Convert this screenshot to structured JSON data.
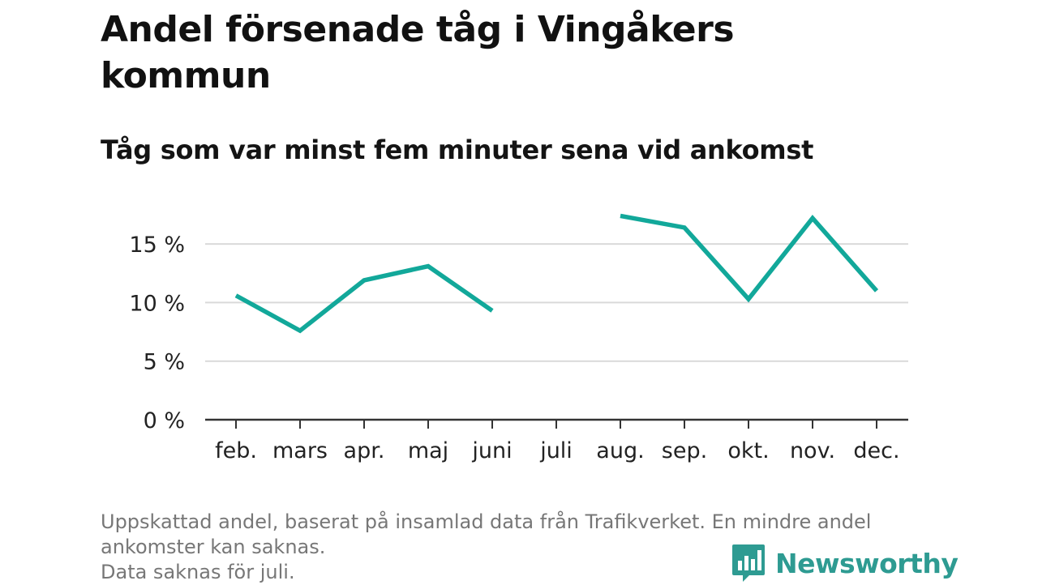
{
  "title": "Andel försenade tåg i Vingåkers kommun",
  "subtitle": "Tåg som var minst fem minuter sena vid ankomst",
  "footnote": {
    "line1": "Uppskattad andel, baserat på insamlad data från Trafikverket. En mindre andel",
    "line2": "ankomster kan saknas.",
    "line3": "Data saknas för juli."
  },
  "brand": {
    "name": "Newsworthy",
    "color": "#2e9b92"
  },
  "chart_data": {
    "type": "line",
    "title": "Andel försenade tåg i Vingåkers kommun",
    "subtitle": "Tåg som var minst fem minuter sena vid ankomst",
    "xlabel": "",
    "ylabel": "",
    "categories": [
      "feb.",
      "mars",
      "apr.",
      "maj",
      "juni",
      "juli",
      "aug.",
      "sep.",
      "okt.",
      "nov.",
      "dec."
    ],
    "series": [
      {
        "values": [
          10.6,
          7.6,
          11.9,
          13.1,
          9.3,
          null,
          17.4,
          16.4,
          10.3,
          17.2,
          11.0
        ],
        "color": "#12a89a"
      }
    ],
    "ylim": [
      0,
      18.5
    ],
    "yticks": [
      0,
      5,
      10,
      15
    ],
    "ytick_labels": [
      "0 %",
      "5 %",
      "10 %",
      "15 %"
    ],
    "grid": true,
    "legend": "none"
  }
}
